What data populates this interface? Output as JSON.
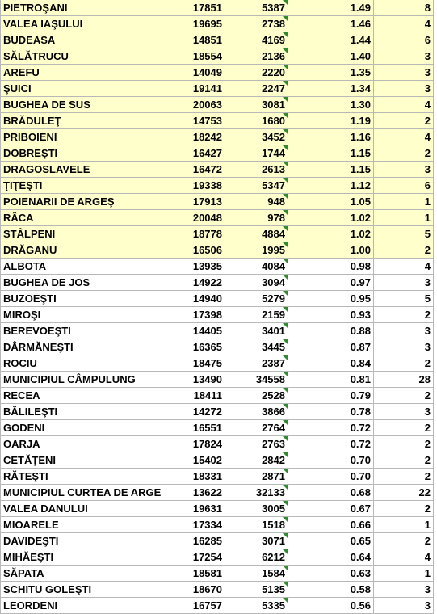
{
  "colors": {
    "highlight": "#ffffcc",
    "grid": "#b8b8b8",
    "comment_marker": "#2e8b2e"
  },
  "rows": [
    {
      "name": "PIETROŞANI",
      "code": "17851",
      "population": "5387",
      "ratio": "1.49",
      "count": "8",
      "highlight": true
    },
    {
      "name": "VALEA IAŞULUI",
      "code": "19695",
      "population": "2738",
      "ratio": "1.46",
      "count": "4",
      "highlight": true
    },
    {
      "name": "BUDEASA",
      "code": "14851",
      "population": "4169",
      "ratio": "1.44",
      "count": "6",
      "highlight": true
    },
    {
      "name": "SĂLĂTRUCU",
      "code": "18554",
      "population": "2136",
      "ratio": "1.40",
      "count": "3",
      "highlight": true
    },
    {
      "name": "AREFU",
      "code": "14049",
      "population": "2220",
      "ratio": "1.35",
      "count": "3",
      "highlight": true
    },
    {
      "name": "ŞUICI",
      "code": "19141",
      "population": "2247",
      "ratio": "1.34",
      "count": "3",
      "highlight": true
    },
    {
      "name": "BUGHEA DE SUS",
      "code": "20063",
      "population": "3081",
      "ratio": "1.30",
      "count": "4",
      "highlight": true
    },
    {
      "name": "BRĂDULEŢ",
      "code": "14753",
      "population": "1680",
      "ratio": "1.19",
      "count": "2",
      "highlight": true
    },
    {
      "name": "PRIBOIENI",
      "code": "18242",
      "population": "3452",
      "ratio": "1.16",
      "count": "4",
      "highlight": true
    },
    {
      "name": "DOBREŞTI",
      "code": "16427",
      "population": "1744",
      "ratio": "1.15",
      "count": "2",
      "highlight": true
    },
    {
      "name": "DRAGOSLAVELE",
      "code": "16472",
      "population": "2613",
      "ratio": "1.15",
      "count": "3",
      "highlight": true
    },
    {
      "name": "ŢIŢEŞTI",
      "code": "19338",
      "population": "5347",
      "ratio": "1.12",
      "count": "6",
      "highlight": true
    },
    {
      "name": "POIENARII DE ARGEŞ",
      "code": "17913",
      "population": "948",
      "ratio": "1.05",
      "count": "1",
      "highlight": true
    },
    {
      "name": "RÂCA",
      "code": "20048",
      "population": "978",
      "ratio": "1.02",
      "count": "1",
      "highlight": true
    },
    {
      "name": "STÂLPENI",
      "code": "18778",
      "population": "4884",
      "ratio": "1.02",
      "count": "5",
      "highlight": true
    },
    {
      "name": "DRĂGANU",
      "code": "16506",
      "population": "1995",
      "ratio": "1.00",
      "count": "2",
      "highlight": true
    },
    {
      "name": "ALBOTA",
      "code": "13935",
      "population": "4084",
      "ratio": "0.98",
      "count": "4",
      "highlight": false
    },
    {
      "name": "BUGHEA DE JOS",
      "code": "14922",
      "population": "3094",
      "ratio": "0.97",
      "count": "3",
      "highlight": false
    },
    {
      "name": "BUZOEŞTI",
      "code": "14940",
      "population": "5279",
      "ratio": "0.95",
      "count": "5",
      "highlight": false
    },
    {
      "name": "MIROŞI",
      "code": "17398",
      "population": "2159",
      "ratio": "0.93",
      "count": "2",
      "highlight": false
    },
    {
      "name": "BEREVOEŞTI",
      "code": "14405",
      "population": "3401",
      "ratio": "0.88",
      "count": "3",
      "highlight": false
    },
    {
      "name": "DÂRMĂNEŞTI",
      "code": "16365",
      "population": "3445",
      "ratio": "0.87",
      "count": "3",
      "highlight": false
    },
    {
      "name": "ROCIU",
      "code": "18475",
      "population": "2387",
      "ratio": "0.84",
      "count": "2",
      "highlight": false
    },
    {
      "name": "MUNICIPIUL CÂMPULUNG",
      "code": "13490",
      "population": "34558",
      "ratio": "0.81",
      "count": "28",
      "highlight": false
    },
    {
      "name": "RECEA",
      "code": "18411",
      "population": "2528",
      "ratio": "0.79",
      "count": "2",
      "highlight": false
    },
    {
      "name": "BĂLILEŞTI",
      "code": "14272",
      "population": "3866",
      "ratio": "0.78",
      "count": "3",
      "highlight": false
    },
    {
      "name": "GODENI",
      "code": "16551",
      "population": "2764",
      "ratio": "0.72",
      "count": "2",
      "highlight": false
    },
    {
      "name": "OARJA",
      "code": "17824",
      "population": "2763",
      "ratio": "0.72",
      "count": "2",
      "highlight": false
    },
    {
      "name": "CETĂŢENI",
      "code": "15402",
      "population": "2842",
      "ratio": "0.70",
      "count": "2",
      "highlight": false
    },
    {
      "name": "RĂTEŞTI",
      "code": "18331",
      "population": "2871",
      "ratio": "0.70",
      "count": "2",
      "highlight": false
    },
    {
      "name": "MUNICIPIUL CURTEA DE ARGEŞ",
      "code": "13622",
      "population": "32133",
      "ratio": "0.68",
      "count": "22",
      "highlight": false
    },
    {
      "name": "VALEA DANULUI",
      "code": "19631",
      "population": "3005",
      "ratio": "0.67",
      "count": "2",
      "highlight": false
    },
    {
      "name": "MIOARELE",
      "code": "17334",
      "population": "1518",
      "ratio": "0.66",
      "count": "1",
      "highlight": false
    },
    {
      "name": "DAVIDEŞTI",
      "code": "16285",
      "population": "3071",
      "ratio": "0.65",
      "count": "2",
      "highlight": false
    },
    {
      "name": "MIHĂEŞTI",
      "code": "17254",
      "population": "6212",
      "ratio": "0.64",
      "count": "4",
      "highlight": false
    },
    {
      "name": "SĂPATA",
      "code": "18581",
      "population": "1584",
      "ratio": "0.63",
      "count": "1",
      "highlight": false
    },
    {
      "name": "SCHITU GOLEŞTI",
      "code": "18670",
      "population": "5135",
      "ratio": "0.58",
      "count": "3",
      "highlight": false
    },
    {
      "name": "LEORDENI",
      "code": "16757",
      "population": "5335",
      "ratio": "0.56",
      "count": "3",
      "highlight": false
    }
  ]
}
